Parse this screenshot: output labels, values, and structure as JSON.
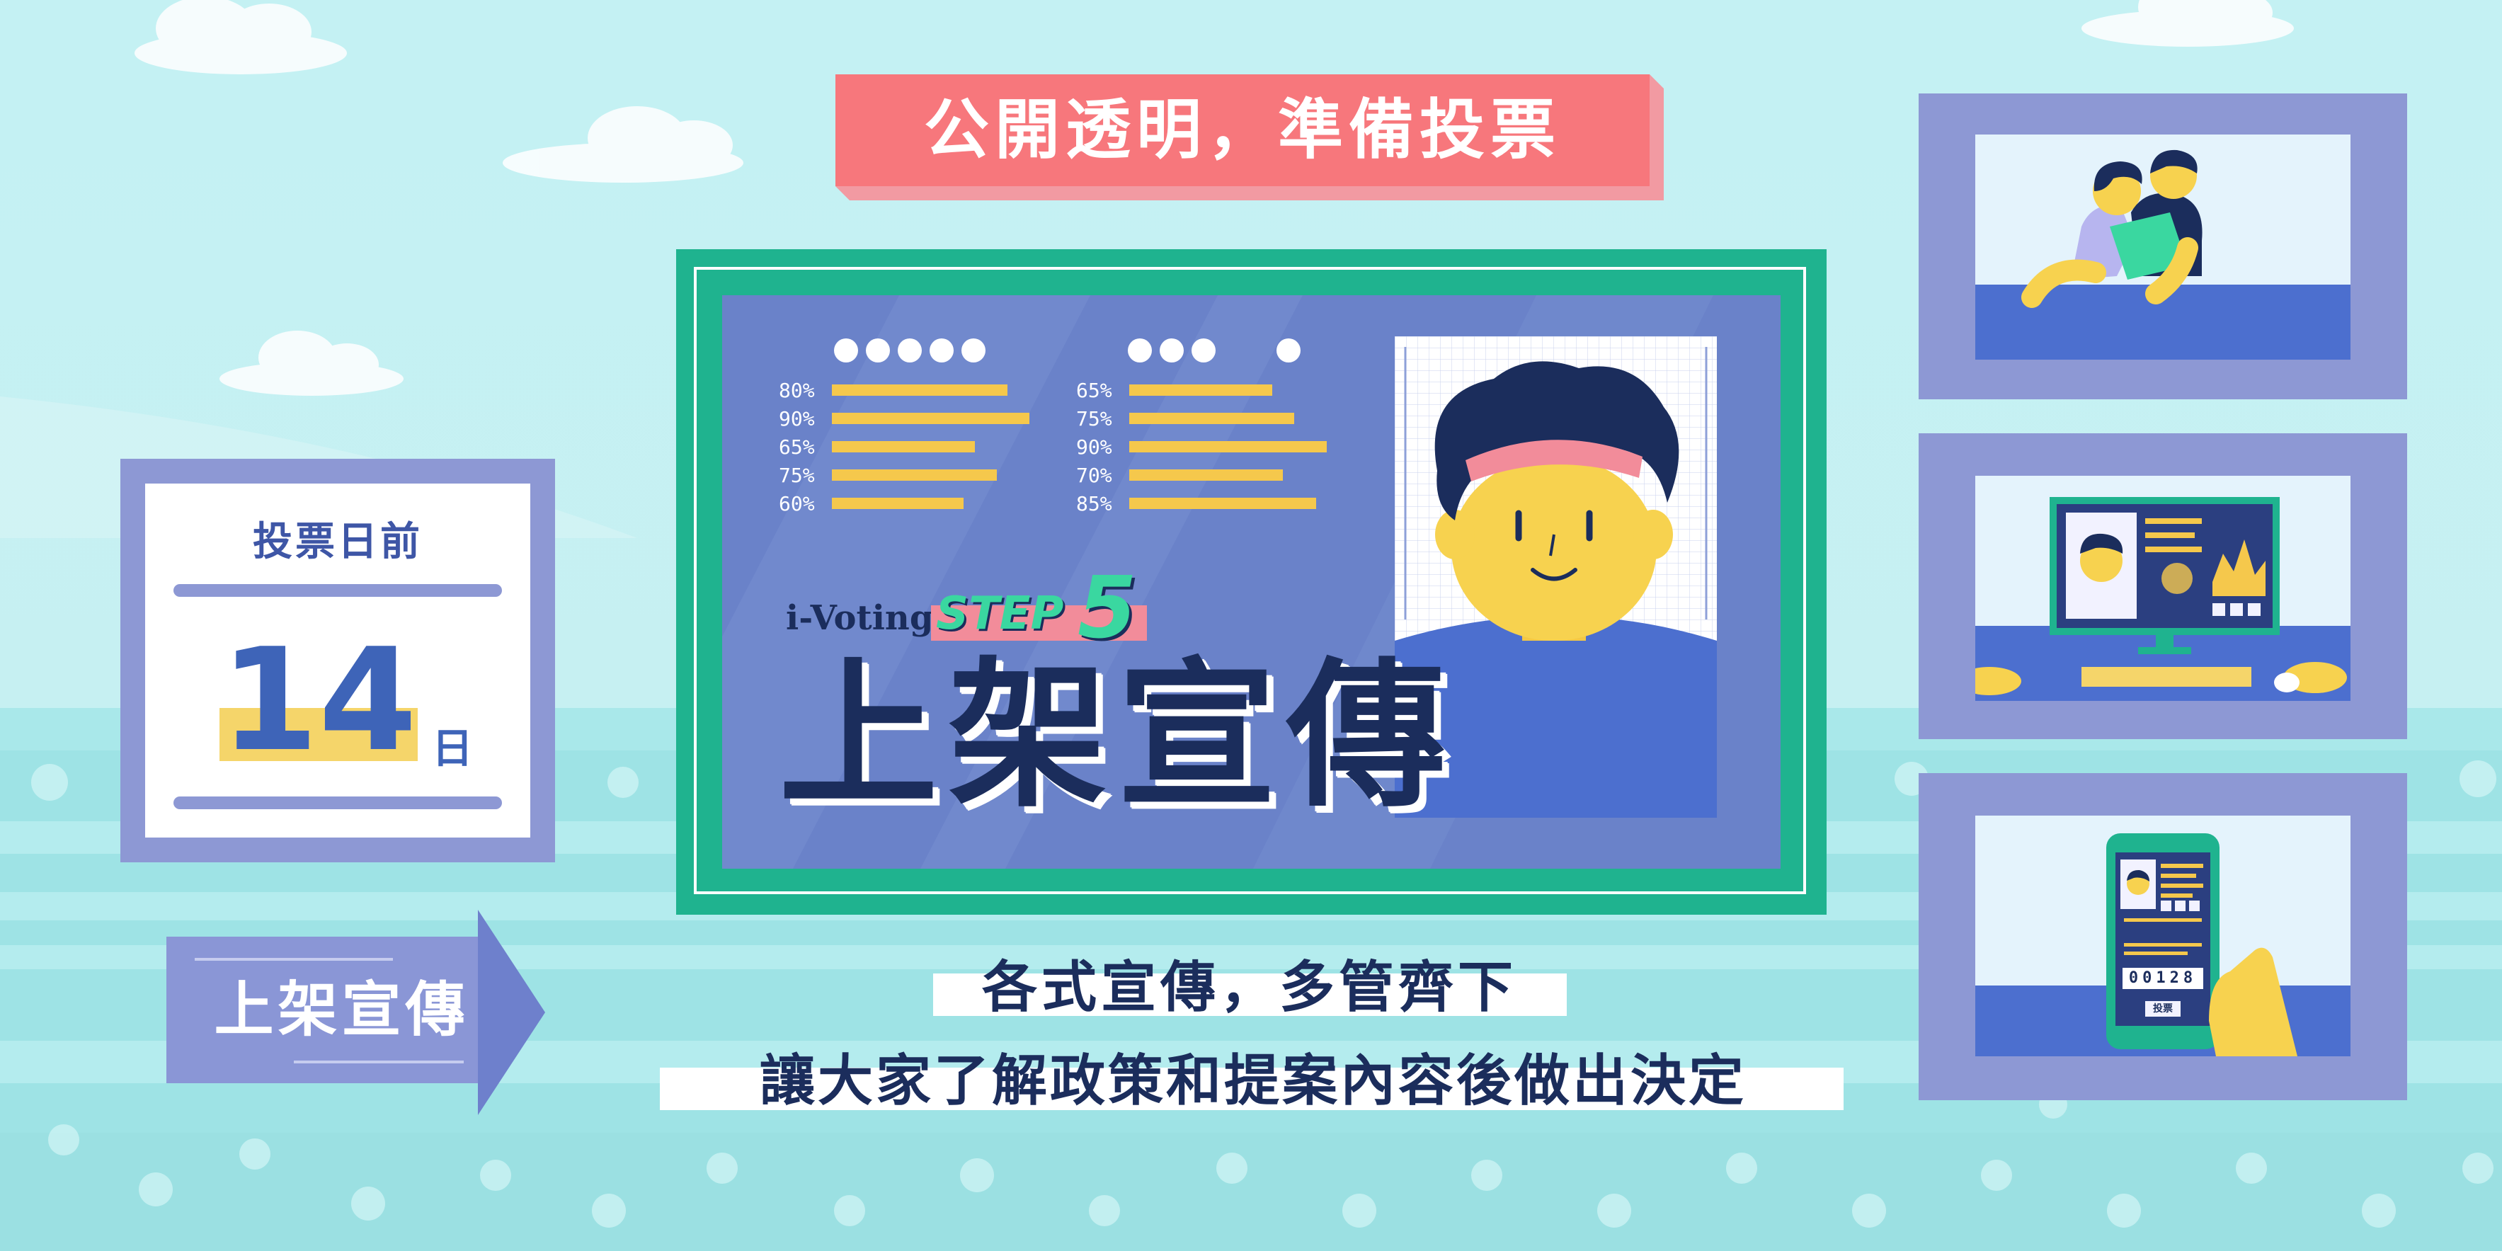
{
  "top_banner": {
    "text": "公開透明，準備投票"
  },
  "countdown": {
    "prefix": "投票日前",
    "days": "14",
    "unit": "日"
  },
  "arrow_tag": {
    "text": "上架宣傳"
  },
  "board": {
    "brand": "i-Voting",
    "step_word": "STEP",
    "step_number": "5",
    "title": "上架宣傳",
    "left_stats": [
      "80%",
      "90%",
      "65%",
      "75%",
      "60%"
    ],
    "right_stats": [
      "65%",
      "75%",
      "90%",
      "70%",
      "85%"
    ],
    "left_fill": [
      0.8,
      0.9,
      0.65,
      0.75,
      0.6
    ],
    "right_fill": [
      0.65,
      0.75,
      0.9,
      0.7,
      0.85
    ]
  },
  "caption": {
    "line1": "各式宣傳，多管齊下",
    "line2": "讓大家了解政策和提案內容後做出決定"
  },
  "phone": {
    "digits": "00128",
    "vote_button": "投票"
  },
  "colors": {
    "sky": "#bdeef1",
    "sea": "#8fdfe1",
    "frame_purple": "#8d98d4",
    "board_green": "#1fb38f",
    "board_blue": "#6a82c9",
    "bar_yellow": "#f5c84c",
    "banner_pink": "#f7777c",
    "navy": "#1b2d5c",
    "accent_green": "#3ad7a0"
  }
}
